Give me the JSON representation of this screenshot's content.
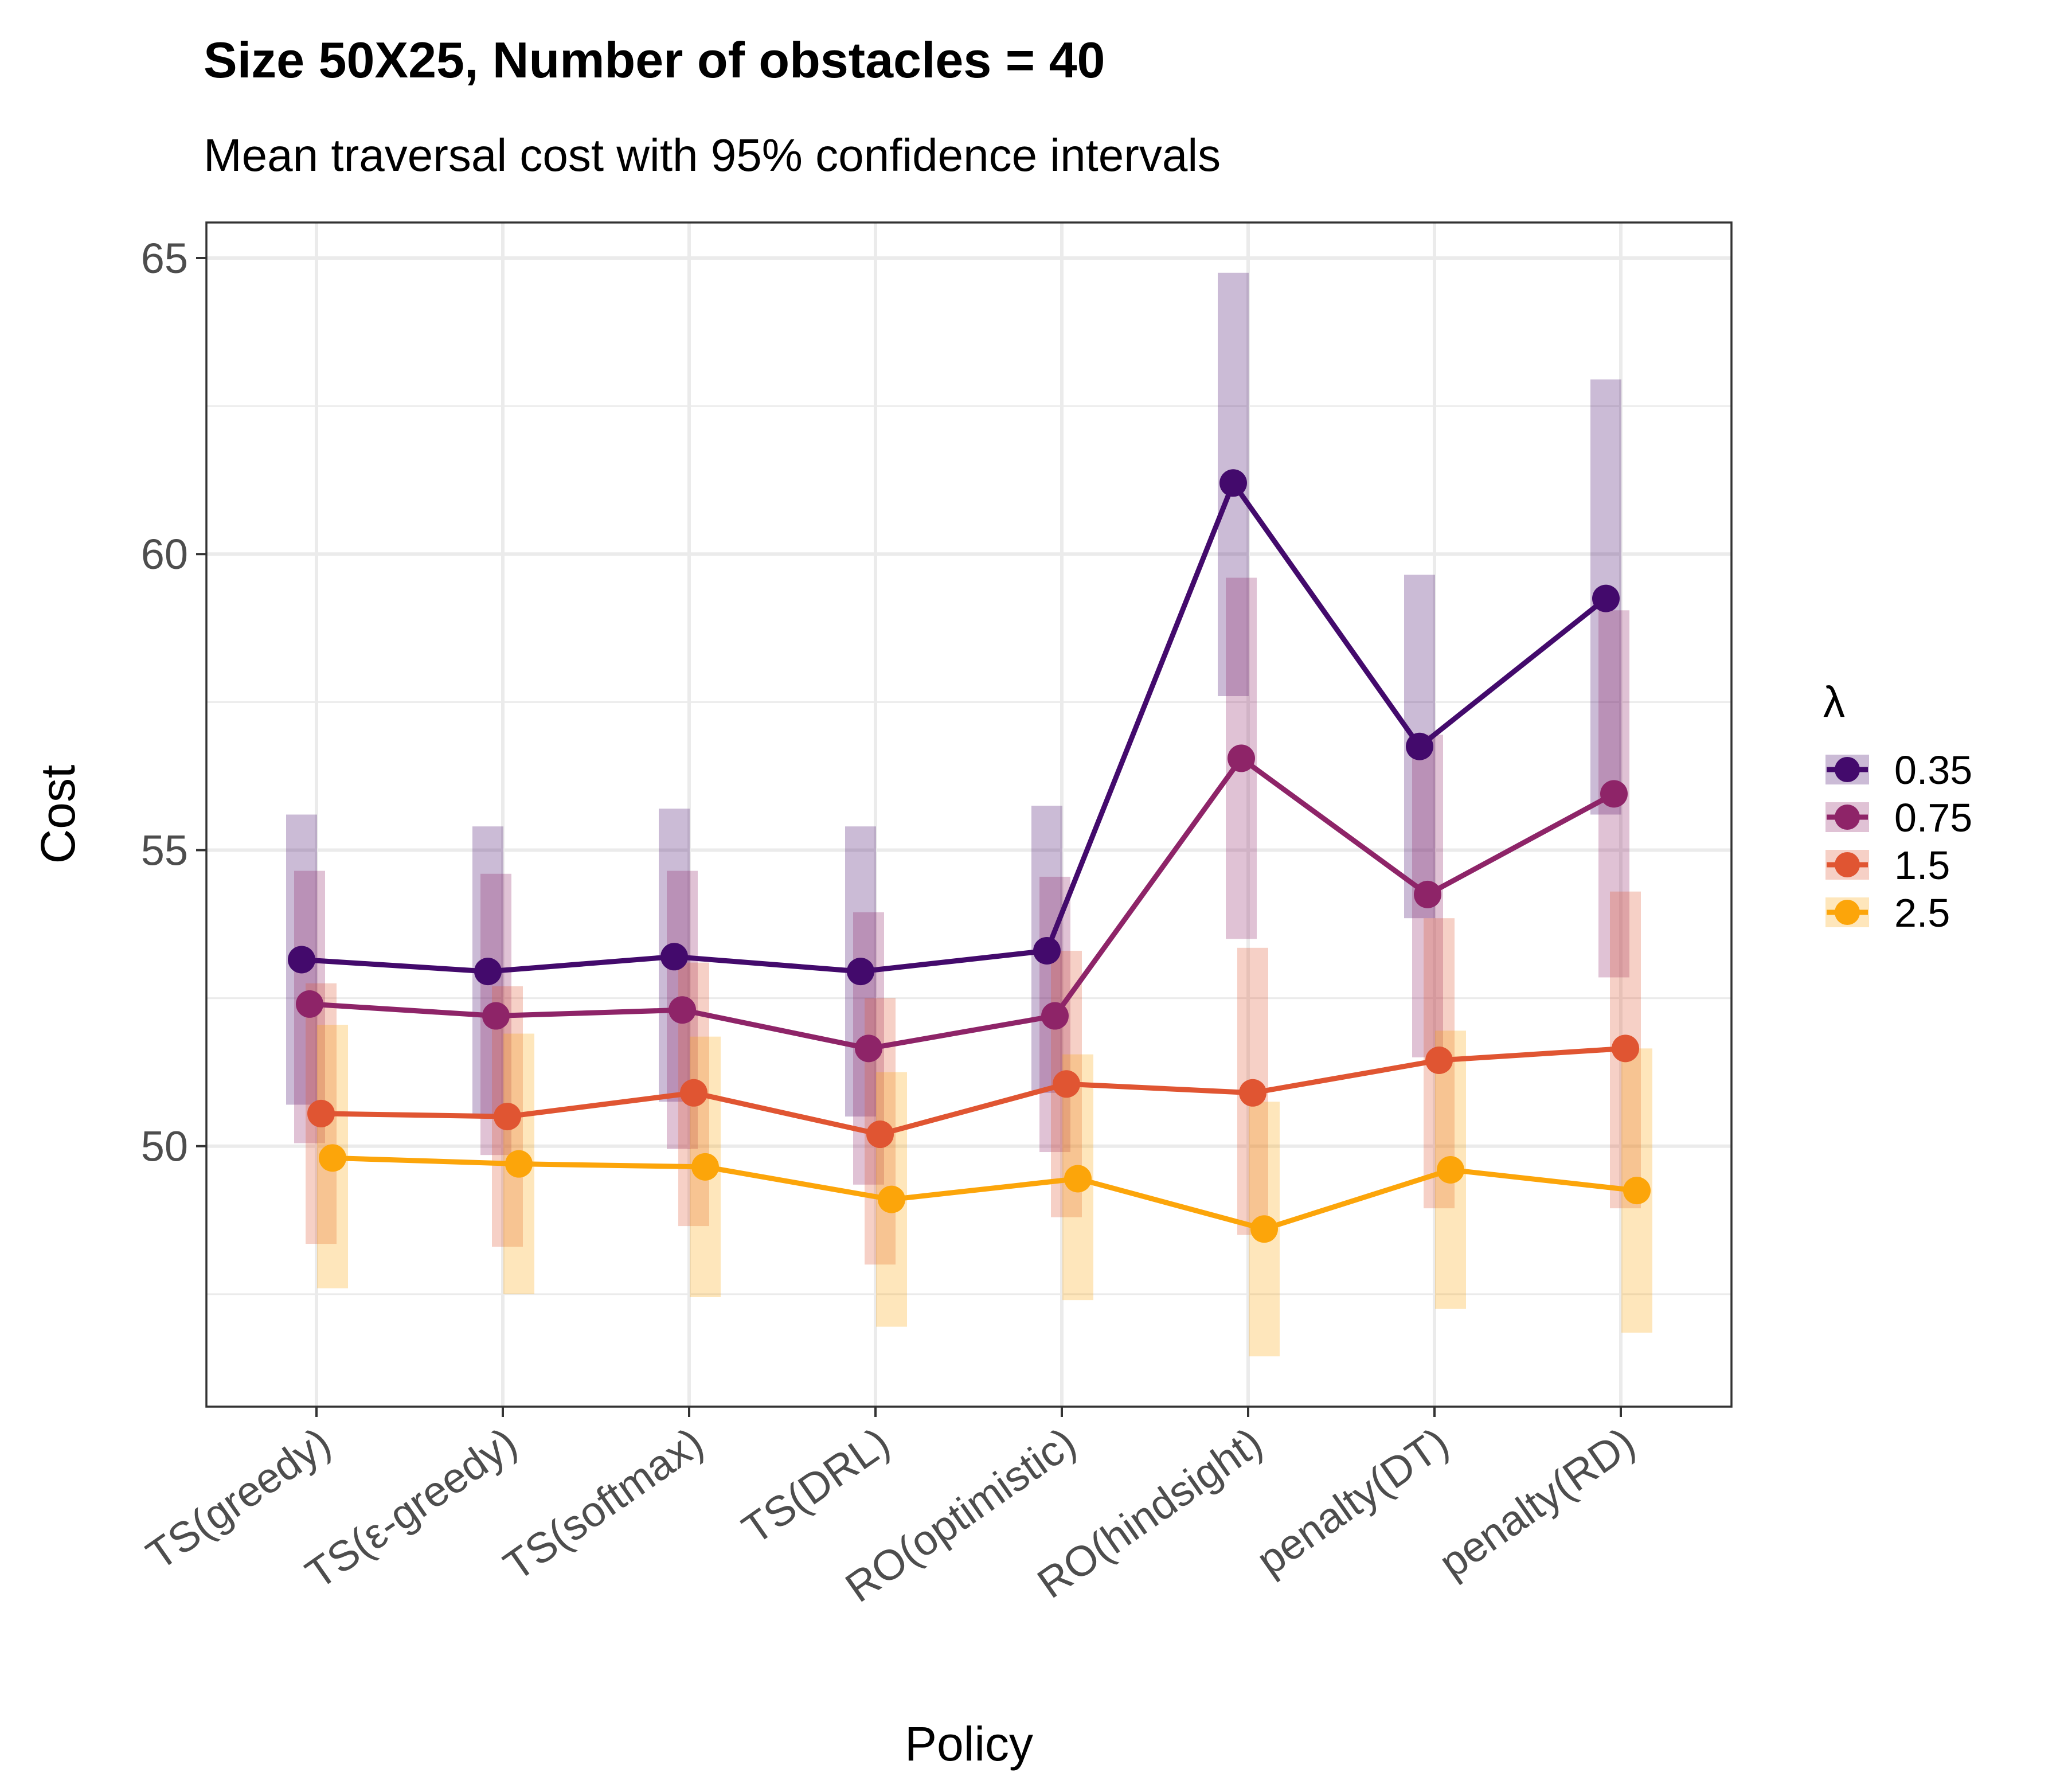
{
  "chart_data": {
    "type": "line",
    "title": "Size 50X25, Number of obstacles = 40",
    "subtitle": "Mean traversal cost with 95% confidence intervals",
    "xlabel": "Policy",
    "ylabel": "Cost",
    "categories": [
      "TS(greedy)",
      "TS(ε-greedy)",
      "TS(softmax)",
      "TS(DRL)",
      "RO(optimistic)",
      "RO(hindsight)",
      "penalty(DT)",
      "penalty(RD)"
    ],
    "ylim": [
      45.6,
      65.6
    ],
    "yticks": [
      50,
      55,
      60,
      65
    ],
    "grid": true,
    "legend": {
      "title": "λ",
      "position": "right"
    },
    "series": [
      {
        "name": "0.35",
        "color": "#430a6c",
        "values": [
          53.15,
          52.95,
          53.2,
          52.95,
          53.3,
          61.2,
          56.75,
          59.25
        ],
        "lower": [
          50.7,
          50.5,
          50.75,
          50.5,
          50.9,
          57.6,
          53.85,
          55.6
        ],
        "upper": [
          55.6,
          55.4,
          55.7,
          55.4,
          55.75,
          64.75,
          59.65,
          62.95
        ]
      },
      {
        "name": "0.75",
        "color": "#8e2468",
        "values": [
          52.4,
          52.2,
          52.3,
          51.65,
          52.2,
          56.55,
          54.25,
          55.95
        ],
        "lower": [
          50.05,
          49.85,
          49.95,
          49.35,
          49.9,
          53.5,
          51.5,
          52.85
        ],
        "upper": [
          54.65,
          54.6,
          54.65,
          53.95,
          54.55,
          59.6,
          56.95,
          59.05
        ]
      },
      {
        "name": "1.5",
        "color": "#e05532",
        "values": [
          50.55,
          50.5,
          50.9,
          50.2,
          51.05,
          50.9,
          51.45,
          51.65
        ],
        "lower": [
          48.35,
          48.3,
          48.65,
          48.0,
          48.8,
          48.5,
          48.95,
          48.95
        ],
        "upper": [
          52.75,
          52.7,
          53.1,
          52.5,
          53.3,
          53.35,
          53.85,
          54.3
        ]
      },
      {
        "name": "2.5",
        "color": "#fca50a",
        "values": [
          49.8,
          49.7,
          49.65,
          49.1,
          49.45,
          48.6,
          49.6,
          49.25
        ],
        "lower": [
          47.6,
          47.5,
          47.45,
          46.95,
          47.4,
          46.45,
          47.25,
          46.85
        ],
        "upper": [
          52.05,
          51.9,
          51.85,
          51.25,
          51.55,
          50.75,
          51.95,
          51.65
        ]
      }
    ]
  }
}
